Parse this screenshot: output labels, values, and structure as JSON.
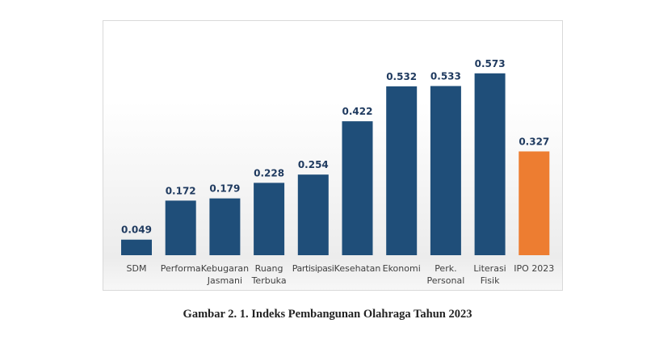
{
  "chart_data": {
    "type": "bar",
    "categories": [
      [
        "SDM"
      ],
      [
        "Performa"
      ],
      [
        "Kebugaran",
        "Jasmani"
      ],
      [
        "Ruang",
        "Terbuka"
      ],
      [
        "Partisipasi"
      ],
      [
        "Kesehatan"
      ],
      [
        "Ekonomi"
      ],
      [
        "Perk.",
        "Personal"
      ],
      [
        "Literasi",
        "Fisik"
      ],
      [
        "IPO 2023"
      ]
    ],
    "values": [
      0.049,
      0.172,
      0.179,
      0.228,
      0.254,
      0.422,
      0.532,
      0.533,
      0.573,
      0.327
    ],
    "labels": [
      "0.049",
      "0.172",
      "0.179",
      "0.228",
      "0.254",
      "0.422",
      "0.532",
      "0.533",
      "0.573",
      "0.327"
    ],
    "colors": [
      "#1f4e79",
      "#1f4e79",
      "#1f4e79",
      "#1f4e79",
      "#1f4e79",
      "#1f4e79",
      "#1f4e79",
      "#1f4e79",
      "#1f4e79",
      "#ed7d31"
    ],
    "title": "",
    "xlabel": "",
    "ylabel": "",
    "ylim": [
      0,
      0.6
    ],
    "grid": false,
    "legend": "none"
  },
  "caption": "Gambar 2. 1. Indeks Pembangunan Olahraga Tahun 2023"
}
